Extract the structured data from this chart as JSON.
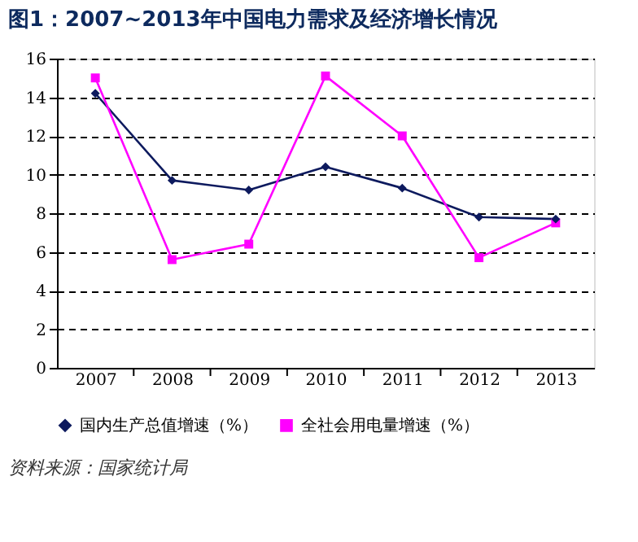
{
  "chart_data": {
    "type": "line",
    "title": "图1：2007~2013年中国电力需求及经济增长情况",
    "categories": [
      "2007",
      "2008",
      "2009",
      "2010",
      "2011",
      "2012",
      "2013"
    ],
    "series": [
      {
        "name": "国内生产总值增速（%）",
        "color": "#0d1a5e",
        "marker": "diamond",
        "values": [
          14.2,
          9.7,
          9.2,
          10.4,
          9.3,
          7.8,
          7.7
        ]
      },
      {
        "name": "全社会用电量增速（%）",
        "color": "#ff00ff",
        "marker": "square",
        "values": [
          15.0,
          5.6,
          6.4,
          15.1,
          12.0,
          5.7,
          7.5
        ]
      }
    ],
    "ylim": [
      0,
      16
    ],
    "yticks": [
      0,
      2,
      4,
      6,
      8,
      10,
      12,
      14,
      16
    ],
    "grid": "y",
    "legend": "bottom",
    "annotations": [
      "资料来源：国家统计局"
    ]
  }
}
